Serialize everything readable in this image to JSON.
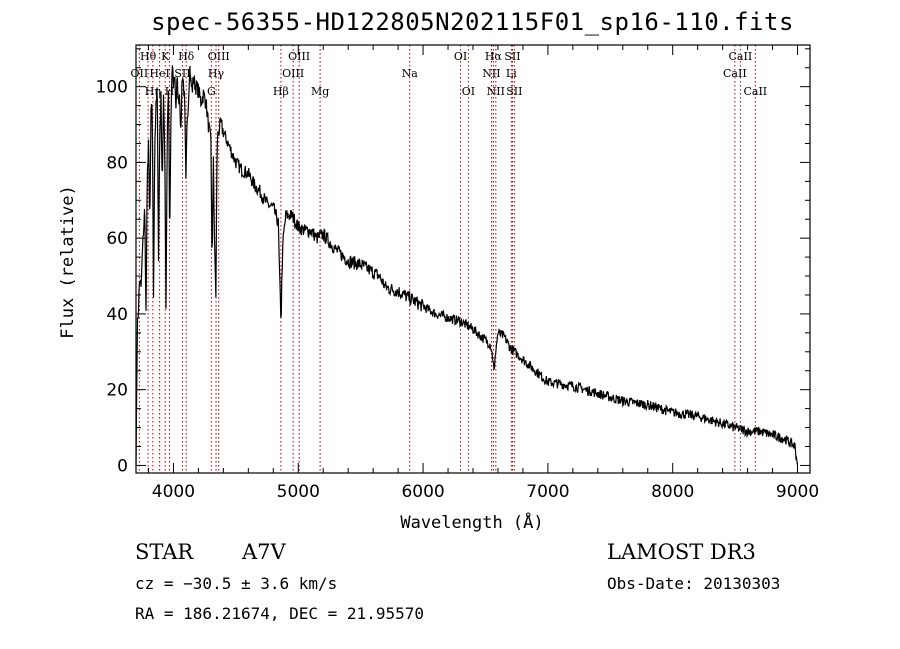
{
  "title": "spec-56355-HD122805N202115F01_sp16-110.fits",
  "chart_data": {
    "type": "line",
    "title": "spec-56355-HD122805N202115F01_sp16-110.fits",
    "xlabel": "Wavelength (Å)",
    "ylabel": "Flux (relative)",
    "xlim": [
      3700,
      9100
    ],
    "ylim": [
      -2,
      111
    ],
    "xticks": [
      4000,
      5000,
      6000,
      7000,
      8000,
      9000
    ],
    "yticks": [
      0,
      20,
      40,
      60,
      80,
      100
    ],
    "series": [
      {
        "name": "flux",
        "x": [
          3700,
          3710,
          3720,
          3730,
          3740,
          3750,
          3760,
          3770,
          3780,
          3790,
          3800,
          3810,
          3820,
          3830,
          3840,
          3850,
          3860,
          3870,
          3880,
          3890,
          3900,
          3910,
          3920,
          3930,
          3940,
          3950,
          3960,
          3970,
          3980,
          3990,
          4000,
          4010,
          4020,
          4030,
          4040,
          4050,
          4060,
          4070,
          4080,
          4090,
          4100,
          4110,
          4120,
          4130,
          4140,
          4150,
          4160,
          4180,
          4200,
          4220,
          4240,
          4260,
          4280,
          4300,
          4310,
          4320,
          4330,
          4340,
          4350,
          4360,
          4380,
          4400,
          4450,
          4500,
          4550,
          4600,
          4650,
          4700,
          4750,
          4800,
          4820,
          4840,
          4850,
          4860,
          4862,
          4870,
          4880,
          4900,
          4950,
          5000,
          5050,
          5100,
          5150,
          5200,
          5300,
          5400,
          5500,
          5600,
          5650,
          5700,
          5800,
          5900,
          6000,
          6100,
          6200,
          6300,
          6400,
          6500,
          6540,
          6560,
          6570,
          6580,
          6600,
          6650,
          6700,
          6800,
          6900,
          7000,
          7200,
          7400,
          7600,
          7800,
          8000,
          8200,
          8400,
          8500,
          8600,
          8700,
          8800,
          8900,
          8980,
          9000
        ],
        "y": [
          0,
          36,
          42,
          50,
          46,
          55,
          62,
          68,
          40,
          75,
          86,
          62,
          92,
          96,
          45,
          85,
          94,
          100,
          55,
          88,
          97,
          74,
          96,
          85,
          42,
          88,
          100,
          57,
          90,
          106,
          100,
          104,
          95,
          102,
          96,
          99,
          87,
          104,
          101,
          96,
          74,
          92,
          96,
          106,
          101,
          99,
          102,
          100,
          99,
          96,
          98,
          96,
          90,
          85,
          52,
          82,
          56,
          45,
          86,
          88,
          90,
          88,
          84,
          80,
          78,
          77,
          74,
          72,
          69,
          68,
          66,
          64,
          50,
          40,
          37,
          52,
          60,
          66,
          66,
          63,
          62,
          62,
          60,
          61,
          57,
          54,
          53,
          51,
          50,
          47,
          46,
          44,
          42,
          40,
          39,
          38,
          36,
          33,
          32,
          28,
          24,
          30,
          35,
          34,
          31,
          28,
          25,
          22,
          21,
          19,
          17,
          16,
          14,
          13,
          11,
          10,
          9,
          9,
          8,
          7,
          5,
          0
        ]
      }
    ],
    "lines": [
      {
        "label": "Hθ",
        "x": 3797,
        "row": 1
      },
      {
        "label": "OII",
        "x": 3727,
        "row": 2
      },
      {
        "label": "Hη",
        "x": 3835,
        "row": 3
      },
      {
        "label": "HeI",
        "x": 3889,
        "row": 2
      },
      {
        "label": "K",
        "x": 3934,
        "row": 1
      },
      {
        "label": "H",
        "x": 3969,
        "row": 3
      },
      {
        "label": "SII",
        "x": 4072,
        "row": 2
      },
      {
        "label": "Hδ",
        "x": 4102,
        "row": 1
      },
      {
        "label": "OIII",
        "x": 4363,
        "row": 1
      },
      {
        "label": "Hγ",
        "x": 4341,
        "row": 2
      },
      {
        "label": "G",
        "x": 4304,
        "row": 3
      },
      {
        "label": "Hβ",
        "x": 4861,
        "row": 3
      },
      {
        "label": "OIII",
        "x": 5007,
        "row": 1
      },
      {
        "label": "OIII",
        "x": 4959,
        "row": 2
      },
      {
        "label": "Mg",
        "x": 5175,
        "row": 3
      },
      {
        "label": "Na",
        "x": 5893,
        "row": 2
      },
      {
        "label": "OI",
        "x": 6300,
        "row": 1
      },
      {
        "label": "OI",
        "x": 6363,
        "row": 3
      },
      {
        "label": "Hα",
        "x": 6563,
        "row": 1
      },
      {
        "label": "NII",
        "x": 6548,
        "row": 2
      },
      {
        "label": "NII",
        "x": 6583,
        "row": 3
      },
      {
        "label": "SII",
        "x": 6716,
        "row": 1
      },
      {
        "label": "Li",
        "x": 6707,
        "row": 2
      },
      {
        "label": "SII",
        "x": 6731,
        "row": 3
      },
      {
        "label": "CaII",
        "x": 8542,
        "row": 1
      },
      {
        "label": "CaII",
        "x": 8498,
        "row": 2
      },
      {
        "label": "CaII",
        "x": 8662,
        "row": 3
      }
    ]
  },
  "info": {
    "type_label": "STAR",
    "subclass": "A7V",
    "survey": "LAMOST DR3",
    "cz": "cz = −30.5 ± 3.6 km/s",
    "obs_date": "Obs-Date: 20130303",
    "radec": "RA = 186.21674, DEC =  21.95570"
  }
}
